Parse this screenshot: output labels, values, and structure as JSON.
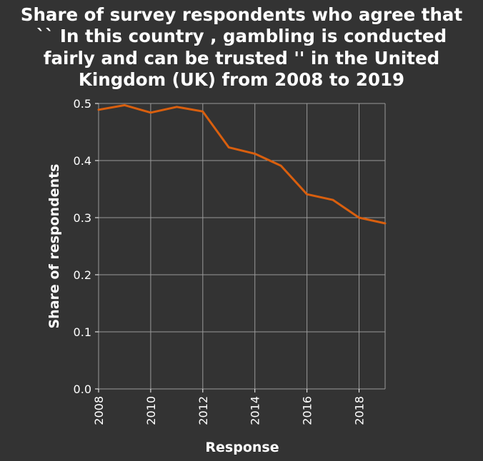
{
  "chart_data": {
    "type": "line",
    "title_lines": [
      "Share of survey respondents who agree that",
      "`` In this country , gambling is conducted",
      "fairly and can be trusted '' in the United",
      "Kingdom (UK) from 2008 to 2019"
    ],
    "xlabel": "Response",
    "ylabel": "Share of respondents",
    "xlim": [
      2008,
      2019
    ],
    "ylim": [
      0,
      0.5
    ],
    "x_ticks": [
      2008,
      2010,
      2012,
      2014,
      2016,
      2018
    ],
    "y_ticks": [
      0.0,
      0.1,
      0.2,
      0.3,
      0.4,
      0.5
    ],
    "y_tick_labels": [
      "0.0",
      "0.1",
      "0.2",
      "0.3",
      "0.4",
      "0.5"
    ],
    "grid": true,
    "x": [
      2008,
      2009,
      2010,
      2011,
      2012,
      2013,
      2014,
      2015,
      2016,
      2017,
      2018,
      2019
    ],
    "series": [
      {
        "values": [
          0.489,
          0.497,
          0.484,
          0.494,
          0.486,
          0.423,
          0.412,
          0.391,
          0.341,
          0.331,
          0.3,
          0.29
        ],
        "color": "#d95f0e"
      }
    ]
  },
  "colors": {
    "background": "#333333",
    "text": "#ffffff",
    "grid": "#9a9a9a",
    "line": "#d95f0e"
  }
}
